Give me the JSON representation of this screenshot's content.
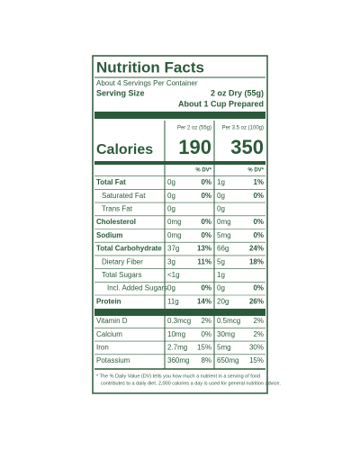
{
  "label": {
    "title": "Nutrition Facts",
    "servings": "About 4 Servings Per Container",
    "serving_size_label": "Serving Size",
    "serving_size": "2 oz Dry (55g)",
    "serving_size_prepared": "About 1 Cup Prepared",
    "column_headers": [
      "Per 2 oz (55g)",
      "Per 3.5 oz (100g)"
    ],
    "calories_label": "Calories",
    "calories": [
      190,
      350
    ],
    "dv_headers": [
      "% DV*",
      "% DV*"
    ],
    "nutrients": [
      {
        "name": "Total Fat",
        "bold": true,
        "indent": 0,
        "cells": [
          "0g",
          "0%",
          "1g",
          "1%"
        ]
      },
      {
        "name": "Saturated Fat",
        "bold": false,
        "indent": 1,
        "cells": [
          "0g",
          "0%",
          "0g",
          "0%"
        ]
      },
      {
        "name": "Trans Fat",
        "bold": false,
        "indent": 1,
        "cells": [
          "0g",
          null,
          "0g",
          null
        ]
      },
      {
        "name": "Cholesterol",
        "bold": true,
        "indent": 0,
        "cells": [
          "0mg",
          "0%",
          "0mg",
          "0%"
        ]
      },
      {
        "name": "Sodium",
        "bold": true,
        "indent": 0,
        "cells": [
          "0mg",
          "0%",
          "5mg",
          "0%"
        ]
      },
      {
        "name": "Total Carbohydrate",
        "bold": true,
        "indent": 0,
        "cells": [
          "37g",
          "13%",
          "66g",
          "24%"
        ]
      },
      {
        "name": "Dietary Fiber",
        "bold": false,
        "indent": 1,
        "cells": [
          "3g",
          "11%",
          "5g",
          "18%"
        ]
      },
      {
        "name": "Total Sugars",
        "bold": false,
        "indent": 1,
        "cells": [
          "<1g",
          null,
          "1g",
          null
        ]
      },
      {
        "name": "Incl. Added Sugars",
        "bold": false,
        "indent": 2,
        "cells": [
          "0g",
          "0%",
          "0g",
          "0%"
        ]
      },
      {
        "name": "Protein",
        "bold": true,
        "indent": 0,
        "cells": [
          "11g",
          "14%",
          "20g",
          "26%"
        ]
      }
    ],
    "vitamins": [
      {
        "name": "Vitamin D",
        "cells": [
          "0.3mcg",
          "2%",
          "0.5mcg",
          "2%"
        ]
      },
      {
        "name": "Calcium",
        "cells": [
          "10mg",
          "0%",
          "30mg",
          "2%"
        ]
      },
      {
        "name": "Iron",
        "cells": [
          "2.7mg",
          "15%",
          "5mg",
          "30%"
        ]
      },
      {
        "name": "Potassium",
        "cells": [
          "360mg",
          "8%",
          "650mg",
          "15%"
        ]
      }
    ],
    "footnote": [
      "* The % Daily Value (DV) tells you how much a nutrient in a serving of food",
      "contributes to a daily diet. 2,000 calories a day is used for general nutrition advice."
    ]
  }
}
